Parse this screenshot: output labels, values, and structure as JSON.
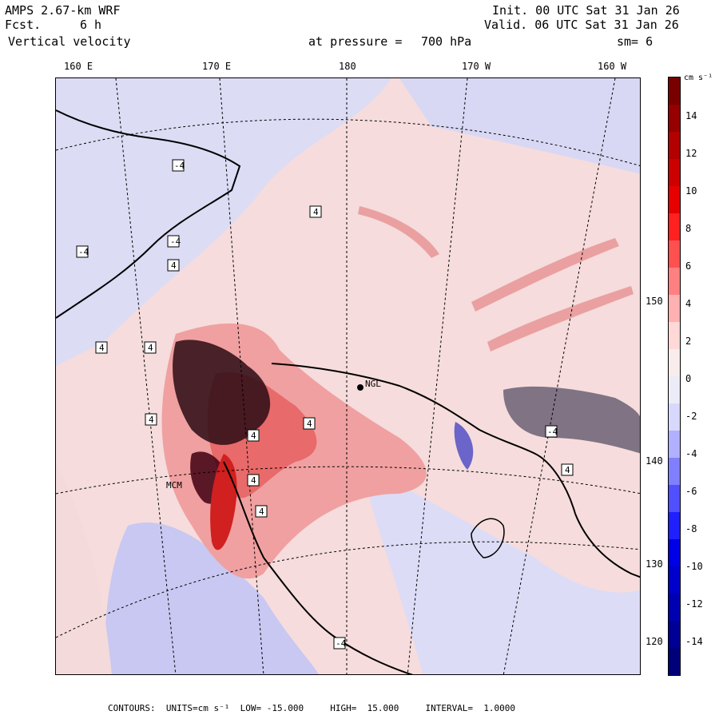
{
  "header": {
    "model": "AMPS 2.67-km WRF",
    "forecast_label": "Fcst.",
    "forecast_hours": "6 h",
    "field": "Vertical velocity",
    "init": "Init. 00 UTC Sat 31 Jan 26",
    "valid": "Valid. 06 UTC Sat 31 Jan 26",
    "pressure_label": "at pressure =",
    "pressure_value": "700 hPa",
    "smoothing": "sm= 6"
  },
  "longitude_labels": [
    "160 E",
    "170 E",
    "180",
    "170 W",
    "160 W"
  ],
  "latitude_labels": [
    "150 W",
    "140 W",
    "130 W",
    "120 W"
  ],
  "colorbar": {
    "units": "cm s⁻¹",
    "colors": [
      "#7a0000",
      "#960000",
      "#b30000",
      "#cc0000",
      "#e60000",
      "#ff2020",
      "#ff5050",
      "#ff8080",
      "#ffb0b0",
      "#ffd8d8",
      "#f8ecec",
      "#ececf8",
      "#d8d8ff",
      "#b0b0ff",
      "#8080ff",
      "#5050ff",
      "#2020ff",
      "#0000e6",
      "#0000cc",
      "#0000b3",
      "#000096",
      "#00007a"
    ],
    "ticks": [
      "14",
      "12",
      "10",
      "8",
      "6",
      "4",
      "2",
      "0",
      "-2",
      "-4",
      "-6",
      "-8",
      "-10",
      "-12",
      "-14"
    ]
  },
  "station_labels": [
    "MCM",
    "NGL"
  ],
  "contour_labels": [
    "-4",
    "4",
    "4",
    "-4",
    "4",
    "4",
    "4",
    "4",
    "-4",
    "4",
    "-4",
    "4",
    "4",
    "4",
    "-4"
  ],
  "footer": {
    "contours_label": "CONTOURS:",
    "units_label": "UNITS=cm s⁻¹",
    "low_label": "LOW=",
    "low_value": "-15.000",
    "high_label": "HIGH=",
    "high_value": "15.000",
    "interval_label": "INTERVAL=",
    "interval_value": "1.0000"
  }
}
